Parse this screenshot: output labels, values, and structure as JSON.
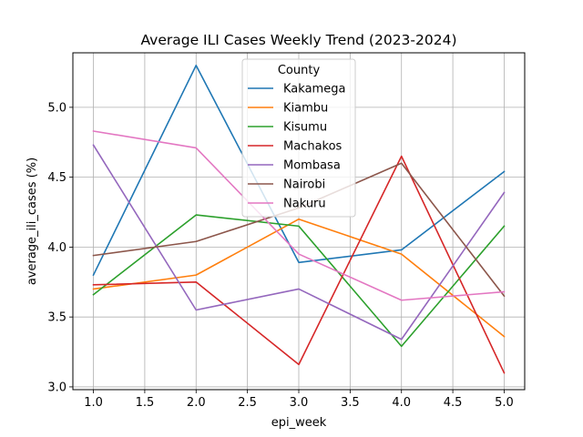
{
  "chart_data": {
    "type": "line",
    "title": "Average ILI Cases Weekly Trend (2023-2024)",
    "xlabel": "epi_week",
    "ylabel": "average_ili_cases (%)",
    "x": [
      1,
      2,
      3,
      4,
      5
    ],
    "xlim": [
      0.8,
      5.2
    ],
    "ylim": [
      2.98,
      5.39
    ],
    "x_ticks": [
      "1.0",
      "1.5",
      "2.0",
      "2.5",
      "3.0",
      "3.5",
      "4.0",
      "4.5",
      "5.0"
    ],
    "y_ticks": [
      "3.0",
      "3.5",
      "4.0",
      "4.5",
      "5.0"
    ],
    "grid": true,
    "legend": {
      "title": "County",
      "placement": "upper center"
    },
    "series": [
      {
        "name": "Kakamega",
        "color": "#1f77b4",
        "values": [
          3.8,
          5.3,
          3.89,
          3.98,
          4.54
        ]
      },
      {
        "name": "Kiambu",
        "color": "#ff7f0e",
        "values": [
          3.7,
          3.8,
          4.2,
          3.95,
          3.36
        ]
      },
      {
        "name": "Kisumu",
        "color": "#2ca02c",
        "values": [
          3.66,
          4.23,
          4.15,
          3.29,
          4.15
        ]
      },
      {
        "name": "Machakos",
        "color": "#d62728",
        "values": [
          3.73,
          3.75,
          3.16,
          4.65,
          3.1
        ]
      },
      {
        "name": "Mombasa",
        "color": "#9467bd",
        "values": [
          4.73,
          3.55,
          3.7,
          3.34,
          4.39
        ]
      },
      {
        "name": "Nairobi",
        "color": "#8c564b",
        "values": [
          3.94,
          4.04,
          4.28,
          4.6,
          3.65
        ]
      },
      {
        "name": "Nakuru",
        "color": "#e377c2",
        "values": [
          4.83,
          4.71,
          3.95,
          3.62,
          3.68
        ]
      }
    ]
  }
}
